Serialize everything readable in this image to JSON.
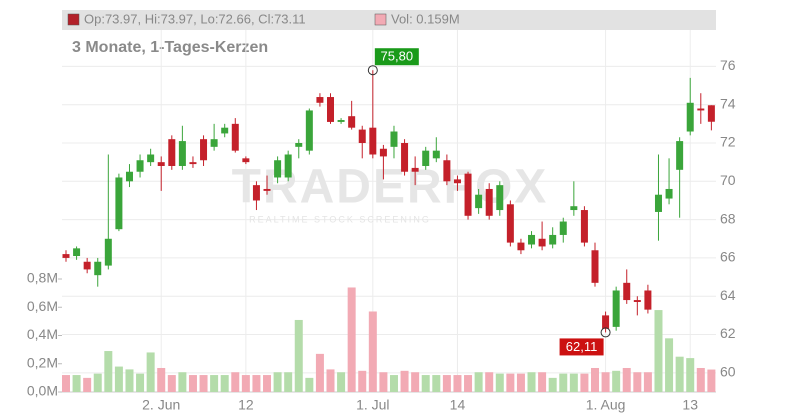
{
  "chart_data": {
    "type": "candlestick",
    "subtitle": "3 Monate, 1-Tages-Kerzen",
    "ohlc_legend": "Op:73.97, Hi:73.97, Lo:72.66, Cl:73.11",
    "volume_legend": "Vol: 0.159M",
    "watermark": "TRADERFOX",
    "watermark_tagline": "REALTIME STOCK SCREENING",
    "categories": [
      null,
      null,
      null,
      null,
      null,
      null,
      null,
      null,
      null,
      "2. Jun",
      null,
      null,
      null,
      null,
      null,
      null,
      null,
      "12",
      null,
      null,
      null,
      null,
      null,
      null,
      null,
      null,
      null,
      null,
      null,
      "1. Jul",
      null,
      null,
      null,
      null,
      null,
      null,
      null,
      "14",
      null,
      null,
      null,
      null,
      null,
      null,
      null,
      null,
      null,
      null,
      null,
      null,
      null,
      "1. Aug",
      null,
      null,
      null,
      null,
      null,
      null,
      null,
      "13",
      null,
      null
    ],
    "open": [
      66.2,
      66.1,
      65.8,
      65.1,
      65.6,
      67.5,
      70.0,
      70.5,
      71.0,
      71.0,
      72.2,
      70.8,
      71.0,
      72.2,
      71.8,
      72.5,
      73.0,
      71.2,
      69.8,
      69.6,
      70.2,
      70.2,
      71.8,
      71.6,
      74.4,
      74.4,
      73.1,
      73.4,
      72.7,
      72.8,
      71.7,
      71.8,
      72.0,
      70.7,
      70.8,
      71.2,
      71.1,
      70.1,
      70.4,
      68.6,
      69.6,
      68.5,
      68.8,
      66.8,
      66.7,
      67.0,
      66.7,
      67.2,
      68.5,
      68.5,
      66.4,
      63.0,
      62.4,
      64.7,
      63.8,
      64.3,
      68.4,
      69.1,
      70.6,
      72.6,
      73.8,
      73.97
    ],
    "high": [
      66.4,
      66.6,
      66.0,
      66.0,
      71.4,
      70.4,
      70.9,
      71.4,
      71.7,
      71.3,
      72.4,
      72.9,
      71.3,
      72.4,
      73.0,
      73.0,
      73.3,
      71.3,
      70.0,
      70.3,
      71.3,
      71.6,
      72.2,
      73.8,
      74.6,
      74.6,
      73.3,
      74.2,
      72.9,
      75.8,
      71.9,
      72.9,
      72.2,
      71.3,
      71.8,
      72.3,
      71.4,
      70.3,
      70.5,
      69.6,
      69.9,
      70.0,
      69.0,
      67.0,
      67.4,
      67.9,
      67.6,
      68.1,
      70.0,
      68.7,
      66.8,
      63.2,
      64.5,
      65.4,
      64.0,
      64.6,
      71.4,
      71.2,
      72.3,
      75.4,
      74.6,
      73.97
    ],
    "low": [
      65.8,
      65.9,
      65.2,
      64.5,
      65.4,
      67.4,
      69.7,
      70.2,
      70.8,
      69.5,
      70.6,
      70.6,
      70.7,
      70.8,
      71.6,
      72.3,
      71.5,
      70.9,
      68.5,
      69.3,
      69.9,
      70.0,
      71.2,
      71.4,
      73.9,
      73.0,
      73.0,
      72.7,
      71.2,
      71.2,
      70.1,
      71.2,
      70.3,
      69.8,
      70.6,
      71.0,
      69.8,
      69.5,
      68.0,
      68.3,
      68.0,
      68.2,
      66.6,
      66.2,
      66.5,
      66.4,
      66.5,
      66.8,
      68.2,
      66.6,
      64.5,
      62.11,
      62.2,
      63.6,
      63.0,
      63.1,
      66.9,
      68.8,
      68.1,
      72.4,
      73.0,
      72.66
    ],
    "close": [
      66.0,
      66.5,
      65.4,
      65.8,
      67.0,
      70.2,
      70.5,
      71.1,
      71.4,
      70.8,
      70.8,
      72.1,
      70.9,
      71.1,
      72.2,
      72.8,
      71.6,
      71.0,
      69.0,
      69.5,
      71.1,
      71.4,
      72.0,
      73.7,
      74.1,
      73.1,
      73.2,
      72.8,
      72.0,
      71.4,
      71.3,
      72.6,
      70.5,
      70.5,
      71.6,
      71.6,
      70.0,
      69.9,
      68.2,
      69.3,
      68.2,
      69.8,
      66.8,
      66.4,
      67.2,
      66.6,
      67.2,
      67.9,
      68.7,
      66.8,
      64.7,
      62.3,
      64.3,
      63.8,
      63.7,
      63.3,
      69.3,
      69.6,
      72.1,
      74.1,
      73.7,
      73.11
    ],
    "volume": [
      0.12,
      0.12,
      0.1,
      0.13,
      0.29,
      0.18,
      0.16,
      0.13,
      0.28,
      0.17,
      0.12,
      0.14,
      0.12,
      0.12,
      0.12,
      0.12,
      0.14,
      0.12,
      0.12,
      0.12,
      0.14,
      0.14,
      0.51,
      0.1,
      0.27,
      0.16,
      0.14,
      0.74,
      0.15,
      0.57,
      0.14,
      0.12,
      0.15,
      0.14,
      0.12,
      0.12,
      0.12,
      0.12,
      0.12,
      0.14,
      0.14,
      0.13,
      0.13,
      0.13,
      0.14,
      0.14,
      0.1,
      0.13,
      0.13,
      0.13,
      0.17,
      0.14,
      0.15,
      0.17,
      0.14,
      0.14,
      0.58,
      0.38,
      0.25,
      0.24,
      0.17,
      0.159
    ],
    "up_color": "#3aa53a",
    "down_color": "#c4202a",
    "volume_up_color": "#b4dcaa",
    "volume_down_color": "#f2aab4",
    "ylim": [
      59,
      77.9
    ],
    "yticks": [
      60,
      62,
      64,
      66,
      68,
      70,
      72,
      74,
      76
    ],
    "y2lim": [
      0,
      0.8
    ],
    "y2ticks": [
      {
        "value": 0,
        "label": "0,0M"
      },
      {
        "value": 0.2,
        "label": "0,2M"
      },
      {
        "value": 0.4,
        "label": "0,4M"
      },
      {
        "value": 0.6,
        "label": "0,6M"
      },
      {
        "value": 0.8,
        "label": "0,8M"
      }
    ],
    "grid": true,
    "annotations": [
      {
        "text": "75,80",
        "value": 75.8,
        "anchor": "high"
      },
      {
        "text": "62,11",
        "value": 62.11,
        "anchor": "low"
      }
    ]
  }
}
